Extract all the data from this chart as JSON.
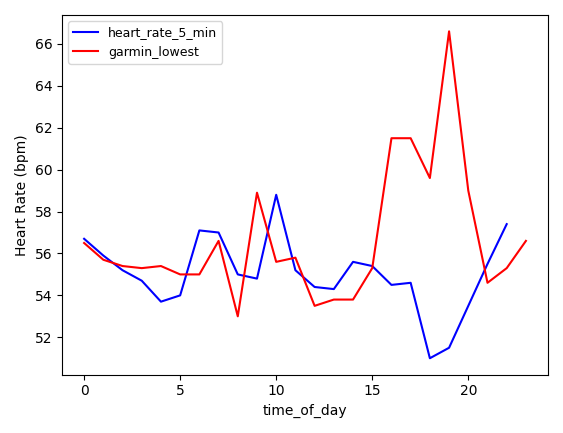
{
  "x": [
    0,
    1,
    2,
    3,
    4,
    5,
    6,
    7,
    8,
    9,
    10,
    11,
    12,
    13,
    14,
    15,
    16,
    17,
    18,
    19,
    20,
    21,
    22,
    23
  ],
  "heart_rate_5_min": [
    56.7,
    55.9,
    55.2,
    54.7,
    53.7,
    54.0,
    57.1,
    57.0,
    55.0,
    54.8,
    58.8,
    55.2,
    54.4,
    54.3,
    55.6,
    55.4,
    54.5,
    54.6,
    51.0,
    51.5,
    53.5,
    55.5,
    57.4,
    null
  ],
  "garmin_lowest": [
    56.5,
    55.7,
    55.4,
    55.3,
    55.4,
    55.0,
    55.0,
    56.6,
    53.0,
    58.9,
    55.6,
    55.8,
    53.5,
    53.8,
    53.8,
    55.3,
    61.5,
    61.5,
    59.6,
    66.6,
    59.0,
    54.6,
    55.3,
    56.6
  ],
  "blue_color": "#0000FF",
  "red_color": "#FF0000",
  "xlabel": "time_of_day",
  "ylabel": "Heart Rate (bpm)",
  "legend_labels": [
    "heart_rate_5_min",
    "garmin_lowest"
  ],
  "xticks": [
    0,
    5,
    10,
    15,
    20
  ],
  "figwidth": 5.63,
  "figheight": 4.33,
  "dpi": 100
}
